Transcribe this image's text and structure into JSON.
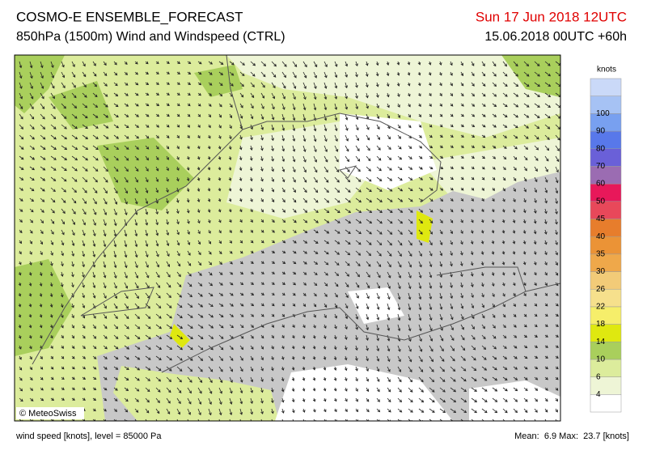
{
  "header": {
    "title": "COSMO-E ENSEMBLE_FORECAST",
    "subtitle": "850hPa (1500m) Wind and Windspeed (CTRL)",
    "valid_time": "Sun 17 Jun 2018 12UTC",
    "run_time": "15.06.2018 00UTC +60h"
  },
  "map": {
    "copyright": "© MeteoSwiss"
  },
  "colorbar": {
    "title": "knots",
    "labels": [
      "4",
      "6",
      "10",
      "14",
      "18",
      "22",
      "26",
      "30",
      "35",
      "40",
      "45",
      "50",
      "60",
      "70",
      "80",
      "90",
      "100"
    ],
    "colors": [
      "#ffffff",
      "#eef5d6",
      "#dcec9c",
      "#a9cf5c",
      "#dfe810",
      "#f6ee6a",
      "#f6e08c",
      "#f2cb78",
      "#efa84a",
      "#eb9336",
      "#e77d2c",
      "#e8485a",
      "#e8185a",
      "#9b6cb2",
      "#6a60d8",
      "#5878ea",
      "#78a0f0",
      "#a6c2f4",
      "#cad9f8"
    ]
  },
  "footer": {
    "left": "wind speed [knots], level = 85000 Pa",
    "right": "Mean:  6.9 Max:  23.7 [knots]"
  }
}
